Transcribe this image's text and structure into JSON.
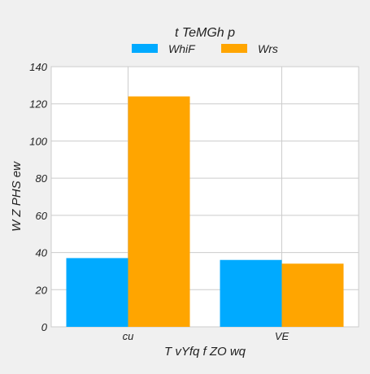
{
  "chart_data": {
    "type": "bar",
    "title": "t TeMGh  p",
    "xlabel": "T vYfq f ZO wq",
    "ylabel": "W Z PHS ew",
    "categories": [
      "cu",
      "VE"
    ],
    "series": [
      {
        "name": "WhiF",
        "color": "#00aaff",
        "values": [
          37,
          36
        ]
      },
      {
        "name": "Wrs",
        "color": "#ffa500",
        "values": [
          124,
          34
        ]
      }
    ],
    "ylim": [
      0,
      140
    ],
    "yticks": [
      0,
      20,
      40,
      60,
      80,
      100,
      120,
      140
    ],
    "grid": true,
    "legend_position": "top-center"
  },
  "colors": {
    "background": "#f0f0f0",
    "plot_background": "#ffffff",
    "grid": "#cccccc",
    "axis_text": "#222222"
  }
}
